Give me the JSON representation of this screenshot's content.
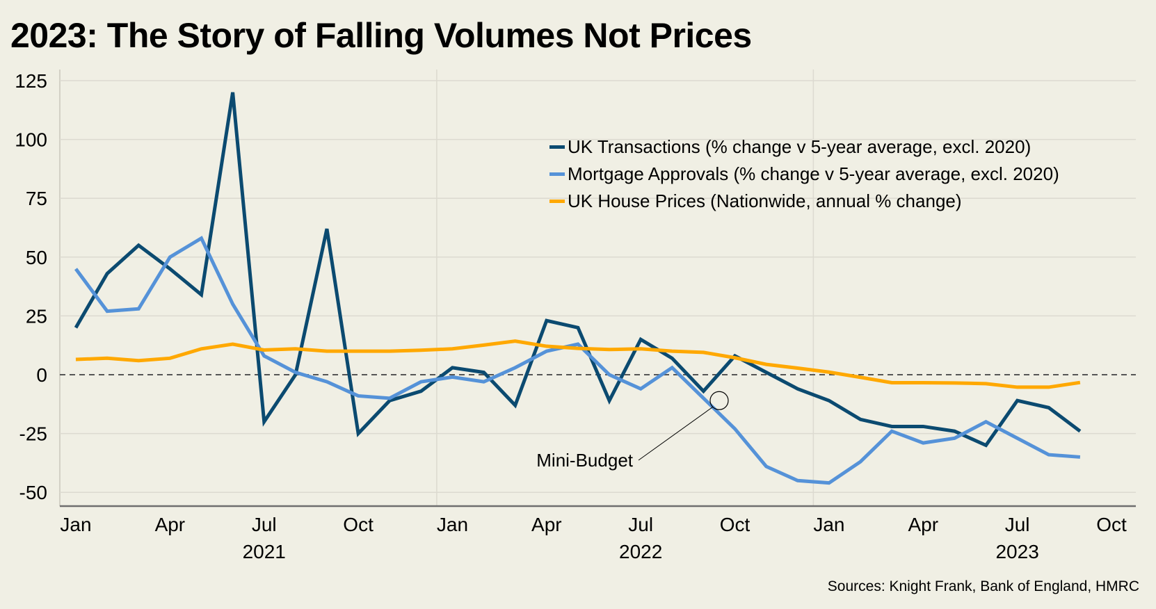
{
  "title": "2023: The Story of Falling Volumes Not Prices",
  "source": "Sources: Knight Frank, Bank of England, HMRC",
  "colors": {
    "transactions": "#0b4a70",
    "mortgage": "#5592d8",
    "prices": "#ffa800",
    "grid": "#dcdad0",
    "zero": "#555555",
    "background": "#f0efe4"
  },
  "chart_data": {
    "type": "line",
    "title": "2023: The Story of Falling Volumes Not Prices",
    "xlabel": "",
    "ylabel": "",
    "ylim": [
      -55,
      130
    ],
    "yticks": [
      125,
      100,
      75,
      50,
      25,
      0,
      -25,
      -50
    ],
    "grid": true,
    "legend_position": "top-right",
    "x_start": "2021-01",
    "x_months": 34,
    "xtick_labels": [
      {
        "month_index": 0,
        "label": "Jan"
      },
      {
        "month_index": 3,
        "label": "Apr"
      },
      {
        "month_index": 6,
        "label": "Jul"
      },
      {
        "month_index": 9,
        "label": "Oct"
      },
      {
        "month_index": 12,
        "label": "Jan"
      },
      {
        "month_index": 15,
        "label": "Apr"
      },
      {
        "month_index": 18,
        "label": "Jul"
      },
      {
        "month_index": 21,
        "label": "Oct"
      },
      {
        "month_index": 24,
        "label": "Jan"
      },
      {
        "month_index": 27,
        "label": "Apr"
      },
      {
        "month_index": 30,
        "label": "Jul"
      },
      {
        "month_index": 33,
        "label": "Oct"
      }
    ],
    "year_labels": [
      {
        "month_index": 6,
        "label": "2021"
      },
      {
        "month_index": 18,
        "label": "2022"
      },
      {
        "month_index": 30,
        "label": "2023"
      }
    ],
    "year_dividers": [
      12,
      24
    ],
    "series": [
      {
        "name": "UK Transactions (% change v 5-year average, excl. 2020)",
        "color_key": "transactions",
        "values": [
          20,
          43,
          55,
          45,
          34,
          120,
          -20,
          0,
          62,
          -25,
          -11,
          -7,
          3,
          1,
          -13,
          23,
          20,
          -11,
          15,
          7,
          -7,
          8,
          1,
          -6,
          -11,
          -19,
          -22,
          -22,
          -24,
          -30,
          -11,
          -14,
          -24
        ]
      },
      {
        "name": "Mortgage Approvals (% change v 5-year average, excl. 2020)",
        "color_key": "mortgage",
        "values": [
          45,
          27,
          28,
          50,
          58,
          30,
          8,
          1,
          -3,
          -9,
          -10,
          -3,
          -1,
          -3,
          3,
          10,
          13,
          0,
          -6,
          3,
          -10,
          -23,
          -39,
          -45,
          -46,
          -37,
          -24,
          -29,
          -27,
          -20,
          -27,
          -34,
          -35
        ]
      },
      {
        "name": "UK House Prices (Nationwide, annual % change)",
        "color_key": "prices",
        "values": [
          6.5,
          7,
          6,
          7,
          11,
          13,
          10.5,
          11,
          10,
          10,
          10,
          10.4,
          11,
          12.6,
          14.3,
          12.1,
          11.2,
          10.7,
          11,
          10,
          9.5,
          7.2,
          4.4,
          2.8,
          1.1,
          -1.1,
          -3.4,
          -3.4,
          -3.5,
          -3.8,
          -5.3,
          -5.3,
          -3.3
        ]
      }
    ],
    "annotations": [
      {
        "text": "Mini-Budget",
        "month_index": 20.5,
        "value": -11
      }
    ]
  }
}
